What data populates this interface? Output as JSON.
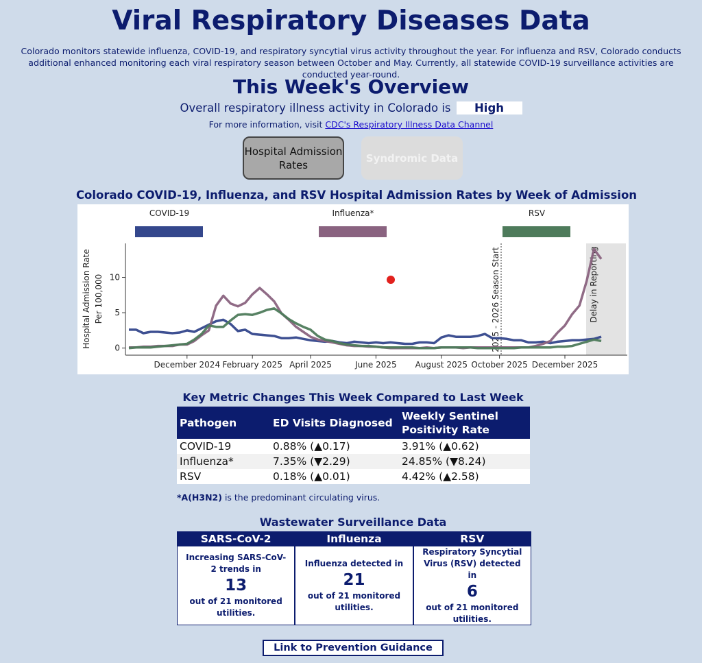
{
  "header": {
    "title": "Viral Respiratory Diseases Data",
    "intro": "Colorado monitors statewide influenza, COVID-19, and respiratory syncytial virus activity throughout the year. For influenza and RSV, Colorado conducts additional enhanced monitoring each viral respiratory season between October and May. Currently, all statewide COVID-19 surveillance activities are conducted year-round."
  },
  "overview": {
    "title": "This Week's Overview",
    "activity_text": "Overall respiratory illness activity in Colorado is",
    "activity_level": "High",
    "info_text": "For more information, visit",
    "info_link": "CDC's Respiratory Illness Data Channel"
  },
  "tabs": [
    "Hospital Admission Rates",
    "Syndromic Data"
  ],
  "chart_data": {
    "type": "line",
    "title": "Colorado COVID-19, Influenza, and RSV Hospital Admission Rates by Week of Admission",
    "ylabel": [
      "Hospital Admission Rate",
      "Per 100,000"
    ],
    "categories": [
      null,
      null,
      null,
      null,
      null,
      null,
      null,
      null,
      "December 2024",
      null,
      null,
      null,
      null,
      null,
      null,
      null,
      null,
      "February 2025",
      null,
      null,
      null,
      null,
      null,
      null,
      null,
      "April 2025",
      null,
      null,
      null,
      null,
      null,
      null,
      null,
      null,
      "June 2025",
      null,
      null,
      null,
      null,
      null,
      null,
      null,
      null,
      "August 2025",
      null,
      null,
      null,
      null,
      null,
      null,
      null,
      "October 2025",
      null,
      null,
      null,
      null,
      null,
      null,
      null,
      null,
      "December 2025",
      null,
      null,
      null,
      null,
      null
    ],
    "ylim": [
      -1,
      14.8
    ],
    "yticks": [
      0,
      5,
      10
    ],
    "annotations": [
      "2025 - 2026 Season Start",
      "Delay in Reporting"
    ],
    "series": [
      {
        "name": "COVID-19",
        "color": "#34478c",
        "values": [
          2.6,
          2.6,
          2.1,
          2.3,
          2.3,
          2.2,
          2.1,
          2.2,
          2.5,
          2.3,
          2.8,
          3.3,
          3.8,
          4.0,
          3.4,
          2.4,
          2.6,
          2.0,
          1.9,
          1.8,
          1.7,
          1.4,
          1.4,
          1.5,
          1.3,
          1.1,
          1.0,
          0.9,
          1.0,
          0.8,
          0.7,
          0.9,
          0.8,
          0.7,
          0.8,
          0.7,
          0.8,
          0.7,
          0.6,
          0.6,
          0.8,
          0.8,
          0.7,
          1.5,
          1.8,
          1.6,
          1.6,
          1.6,
          1.7,
          2.0,
          1.4,
          1.4,
          1.3,
          1.1,
          1.1,
          0.8,
          0.8,
          0.9,
          0.7,
          0.9,
          1.0,
          1.1,
          1.1,
          1.2,
          1.3,
          1.6
        ]
      },
      {
        "name": "Influenza*",
        "color": "#8a6380",
        "values": [
          0.1,
          0.1,
          0.2,
          0.2,
          0.3,
          0.3,
          0.3,
          0.5,
          0.5,
          1.0,
          1.8,
          2.5,
          6.0,
          7.4,
          6.3,
          5.9,
          6.4,
          7.6,
          8.5,
          7.6,
          6.6,
          4.9,
          4.0,
          3.0,
          2.3,
          1.6,
          1.2,
          1.0,
          0.8,
          0.6,
          0.4,
          0.3,
          0.3,
          0.2,
          0.2,
          0.1,
          0.0,
          0.0,
          0.0,
          0.0,
          0.0,
          0.1,
          0.0,
          0.1,
          0.1,
          0.1,
          0.0,
          0.1,
          0.1,
          0.1,
          0.1,
          0.1,
          0.1,
          0.1,
          0.1,
          0.1,
          0.3,
          0.6,
          1.0,
          2.2,
          3.2,
          4.8,
          6.0,
          9.5,
          14.0,
          12.6
        ]
      },
      {
        "name": "RSV",
        "color": "#4e7b5b",
        "values": [
          0.0,
          0.1,
          0.1,
          0.1,
          0.2,
          0.3,
          0.4,
          0.5,
          0.6,
          1.2,
          2.0,
          3.2,
          3.0,
          3.0,
          3.9,
          4.7,
          4.8,
          4.7,
          5.0,
          5.4,
          5.6,
          4.9,
          4.1,
          3.5,
          3.0,
          2.6,
          1.7,
          1.2,
          1.0,
          0.7,
          0.5,
          0.4,
          0.3,
          0.3,
          0.2,
          0.1,
          0.1,
          0.1,
          0.1,
          0.1,
          0.0,
          0.0,
          0.0,
          0.1,
          0.1,
          0.1,
          0.1,
          0.1,
          0.0,
          0.0,
          0.0,
          0.0,
          0.0,
          0.0,
          0.1,
          0.1,
          0.1,
          0.1,
          0.1,
          0.2,
          0.2,
          0.3,
          0.6,
          0.9,
          1.2,
          1.0
        ]
      }
    ]
  },
  "table": {
    "title": "Key Metric Changes This Week Compared to Last Week",
    "columns": [
      "Pathogen",
      "ED Visits Diagnosed",
      "Weekly Sentinel Positivity Rate"
    ],
    "rows": [
      [
        "COVID-19",
        "0.88% (▲0.17)",
        "3.91% (▲0.62)"
      ],
      [
        "Influenza*",
        "7.35% (▼2.29)",
        "24.85% (▼8.24)"
      ],
      [
        "RSV",
        "0.18% (▲0.01)",
        "4.42% (▲2.58)"
      ]
    ],
    "footnote_bold": "*A(H3N2)",
    "footnote_text": " is the predominant circulating virus."
  },
  "wastewater": {
    "title": "Wastewater Surveillance Data",
    "cards": [
      {
        "header": "SARS-CoV-2",
        "text": "Increasing SARS-CoV-2 trends in",
        "number": 13,
        "footer": "out of 21 monitored utilities."
      },
      {
        "header": "Influenza",
        "text": "Influenza detected in",
        "number": 21,
        "footer": "out of 21 monitored utilities."
      },
      {
        "header": "RSV",
        "text": "Respiratory Syncytial Virus (RSV) detected in",
        "number": 6,
        "footer": "out of 21 monitored utilities."
      }
    ]
  },
  "link": "Link to Prevention Guidance"
}
